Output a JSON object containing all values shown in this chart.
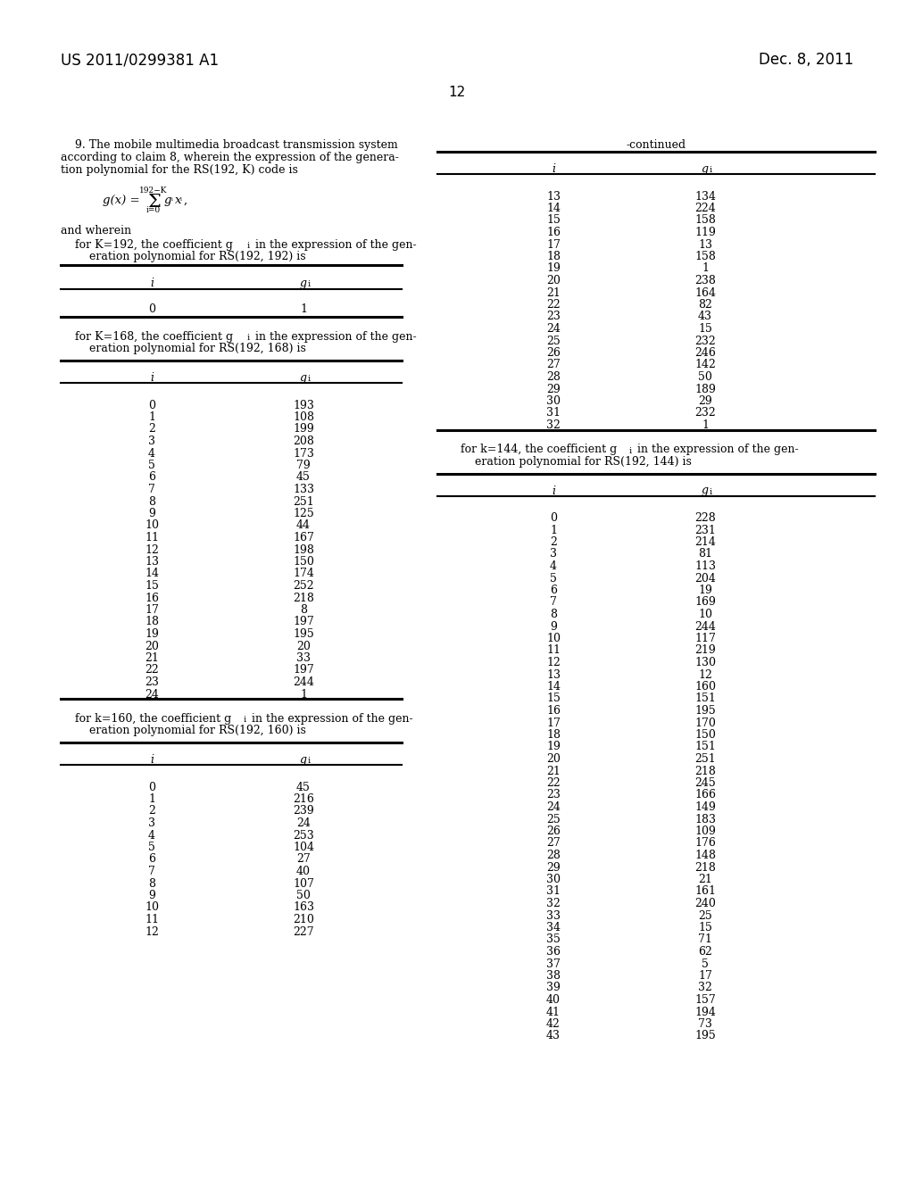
{
  "page_num": "12",
  "patent_num": "US 2011/0299381 A1",
  "patent_date": "Dec. 8, 2011",
  "claim_line1": "    9. The mobile multimedia broadcast transmission system",
  "claim_line2": "according to claim 8, wherein the expression of the genera-",
  "claim_line3": "tion polynomial for the RS(192, K) code is",
  "and_wherein": "and wherein",
  "k192_line1": "    for K=192, the coefficient g",
  "k192_line1b": " in the expression of the gen-",
  "k192_line2": "        eration polynomial for RS(192, 192) is",
  "k192_data": [
    [
      0,
      1
    ]
  ],
  "k168_line1": "    for K=168, the coefficient g",
  "k168_line1b": " in the expression of the gen-",
  "k168_line2": "        eration polynomial for RS(192, 168) is",
  "k168_data": [
    [
      0,
      193
    ],
    [
      1,
      108
    ],
    [
      2,
      199
    ],
    [
      3,
      208
    ],
    [
      4,
      173
    ],
    [
      5,
      79
    ],
    [
      6,
      45
    ],
    [
      7,
      133
    ],
    [
      8,
      251
    ],
    [
      9,
      125
    ],
    [
      10,
      44
    ],
    [
      11,
      167
    ],
    [
      12,
      198
    ],
    [
      13,
      150
    ],
    [
      14,
      174
    ],
    [
      15,
      252
    ],
    [
      16,
      218
    ],
    [
      17,
      8
    ],
    [
      18,
      197
    ],
    [
      19,
      195
    ],
    [
      20,
      20
    ],
    [
      21,
      33
    ],
    [
      22,
      197
    ],
    [
      23,
      244
    ],
    [
      24,
      1
    ]
  ],
  "k160_line1": "    for k=160, the coefficient g",
  "k160_line1b": " in the expression of the gen-",
  "k160_line2": "        eration polynomial for RS(192, 160) is",
  "k160_data": [
    [
      0,
      45
    ],
    [
      1,
      216
    ],
    [
      2,
      239
    ],
    [
      3,
      24
    ],
    [
      4,
      253
    ],
    [
      5,
      104
    ],
    [
      6,
      27
    ],
    [
      7,
      40
    ],
    [
      8,
      107
    ],
    [
      9,
      50
    ],
    [
      10,
      163
    ],
    [
      11,
      210
    ],
    [
      12,
      227
    ]
  ],
  "continued_data": [
    [
      13,
      134
    ],
    [
      14,
      224
    ],
    [
      15,
      158
    ],
    [
      16,
      119
    ],
    [
      17,
      13
    ],
    [
      18,
      158
    ],
    [
      19,
      1
    ],
    [
      20,
      238
    ],
    [
      21,
      164
    ],
    [
      22,
      82
    ],
    [
      23,
      43
    ],
    [
      24,
      15
    ],
    [
      25,
      232
    ],
    [
      26,
      246
    ],
    [
      27,
      142
    ],
    [
      28,
      50
    ],
    [
      29,
      189
    ],
    [
      30,
      29
    ],
    [
      31,
      232
    ],
    [
      32,
      1
    ]
  ],
  "k144_line1": "    for k=144, the coefficient g",
  "k144_line1b": " in the expression of the gen-",
  "k144_line2": "        eration polynomial for RS(192, 144) is",
  "k144_data": [
    [
      0,
      228
    ],
    [
      1,
      231
    ],
    [
      2,
      214
    ],
    [
      3,
      81
    ],
    [
      4,
      113
    ],
    [
      5,
      204
    ],
    [
      6,
      19
    ],
    [
      7,
      169
    ],
    [
      8,
      10
    ],
    [
      9,
      244
    ],
    [
      10,
      117
    ],
    [
      11,
      219
    ],
    [
      12,
      130
    ],
    [
      13,
      12
    ],
    [
      14,
      160
    ],
    [
      15,
      151
    ],
    [
      16,
      195
    ],
    [
      17,
      170
    ],
    [
      18,
      150
    ],
    [
      19,
      151
    ],
    [
      20,
      251
    ],
    [
      21,
      218
    ],
    [
      22,
      245
    ],
    [
      23,
      166
    ],
    [
      24,
      149
    ],
    [
      25,
      183
    ],
    [
      26,
      109
    ],
    [
      27,
      176
    ],
    [
      28,
      148
    ],
    [
      29,
      218
    ],
    [
      30,
      21
    ],
    [
      31,
      161
    ],
    [
      32,
      240
    ],
    [
      33,
      25
    ],
    [
      34,
      15
    ],
    [
      35,
      71
    ],
    [
      36,
      62
    ],
    [
      37,
      5
    ],
    [
      38,
      17
    ],
    [
      39,
      32
    ],
    [
      40,
      157
    ],
    [
      41,
      194
    ],
    [
      42,
      73
    ],
    [
      43,
      195
    ]
  ]
}
